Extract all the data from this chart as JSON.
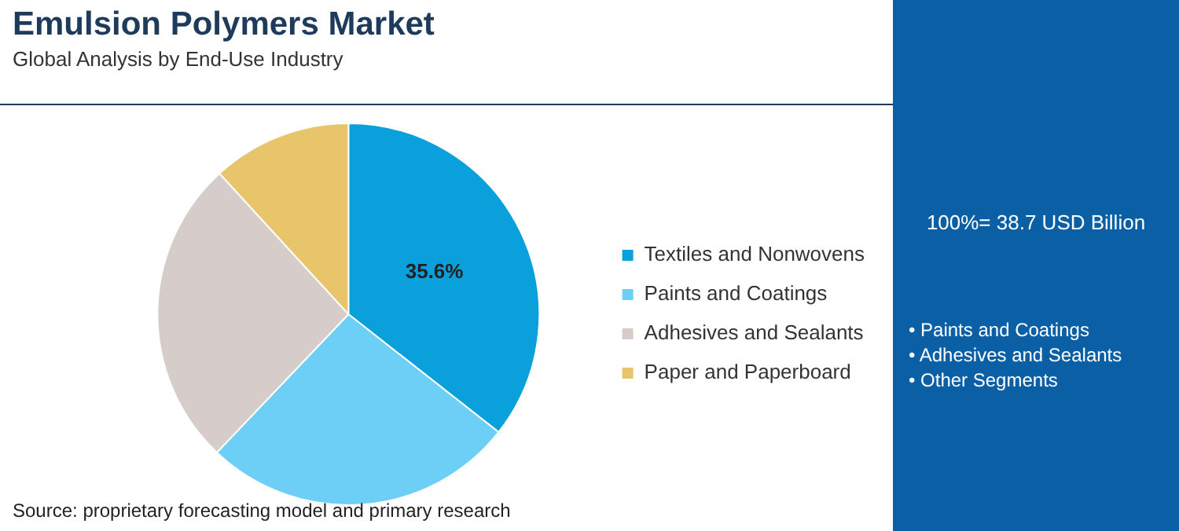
{
  "chart_data": {
    "type": "pie",
    "title": "Emulsion Polymers Market",
    "subtitle": "Global Analysis by End-Use Industry",
    "categories": [
      "Textiles and Nonwovens",
      "Paints and Coatings",
      "Adhesives and Sealants",
      "Paper and Paperboard"
    ],
    "values": [
      35.6,
      26.5,
      26.1,
      11.8
    ],
    "colors": [
      "#0aa0dc",
      "#6dcff6",
      "#d6ccc9",
      "#e8c46a"
    ],
    "value_labels": [
      "35.6%",
      null,
      null,
      null
    ],
    "legend": "right",
    "annotations": [
      "Source: proprietary forecasting model and primary research",
      "100%= 38.7 USD Billion",
      "• Paints and Coatings",
      "• Adhesives and Sealants",
      "• Other Segments"
    ]
  }
}
